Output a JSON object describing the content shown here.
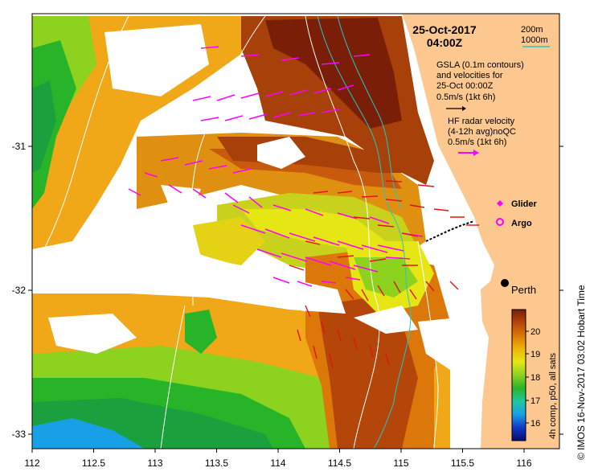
{
  "title": {
    "date": "25-Oct-2017",
    "time": "04:00Z"
  },
  "depth_legend": {
    "shallow": "200m",
    "deep": "1000m"
  },
  "gsla_note": {
    "line1": "GSLA (0.1m contours)",
    "line2": "and velocities for",
    "line3": "25-Oct 00:00Z",
    "line4": "0.5m/s (1kt 6h)"
  },
  "hf_note": {
    "line1": "HF radar velocity",
    "line2": "(4-12h avg)noQC",
    "line3": "0.5m/s (1kt 6h)"
  },
  "legend": {
    "glider": "Glider",
    "argo": "Argo"
  },
  "city": {
    "name": "Perth"
  },
  "colorbar": {
    "ticks": [
      "20",
      "19",
      "18",
      "17",
      "16"
    ],
    "caption": "4h comp, p50, all sats",
    "colors": [
      "#0a0a6e",
      "#1238c8",
      "#18a0e6",
      "#1ec8a0",
      "#28b428",
      "#8cd21e",
      "#e6e614",
      "#f0b40a",
      "#dc780a",
      "#b4460a",
      "#7a1e08"
    ]
  },
  "x_axis": {
    "ticks": [
      "112",
      "112.5",
      "113",
      "113.5",
      "114",
      "114.5",
      "115",
      "115.5",
      "116"
    ]
  },
  "y_axis": {
    "ticks": [
      "-31",
      "-32",
      "-33"
    ]
  },
  "credit": "© IMOS 16-Nov-2017 03:02 Hobart Time",
  "colors": {
    "land": "#fcc890",
    "isobath_200": "#20c8c8",
    "gsla_arrow": "#000000",
    "hf_arrow": "#ff00ff",
    "current_arrow": "#e61414",
    "glider": "#ff00ff"
  }
}
